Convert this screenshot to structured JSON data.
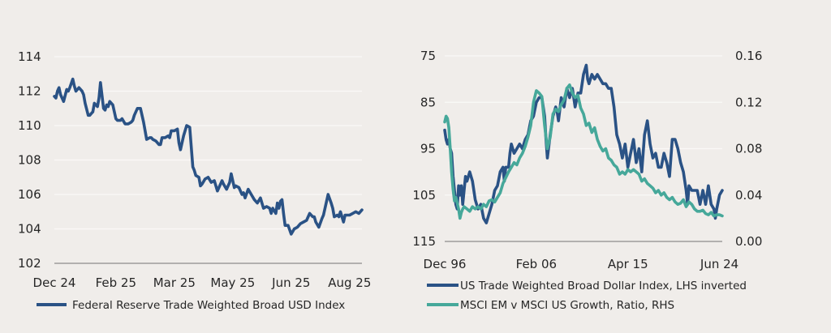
{
  "colors": {
    "background": "#f0edea",
    "navy": "#2a5285",
    "teal": "#46a89a",
    "axis": "#8c8c8c"
  },
  "chart_data": [
    {
      "type": "line",
      "title": "",
      "xlabel": "",
      "ylabel": "",
      "ylim": [
        102,
        114
      ],
      "yticks": [
        "114",
        "112",
        "110",
        "108",
        "106",
        "104",
        "102"
      ],
      "ytick_values": [
        114,
        112,
        110,
        108,
        106,
        104,
        102
      ],
      "xticks": [
        "Dec 24",
        "Feb 25",
        "Mar 25",
        "May 25",
        "Jun 25",
        "Aug 25"
      ],
      "xtick_positions": [
        0,
        0.2,
        0.39,
        0.58,
        0.77,
        0.96
      ],
      "grid": true,
      "legend": "bottom",
      "series": [
        {
          "name": "Federal Reserve Trade Weighted Broad USD Index",
          "color": "#2a5285",
          "x": [
            0,
            0.005,
            0.01,
            0.015,
            0.02,
            0.03,
            0.04,
            0.045,
            0.05,
            0.06,
            0.065,
            0.07,
            0.08,
            0.09,
            0.095,
            0.1,
            0.11,
            0.115,
            0.12,
            0.125,
            0.13,
            0.14,
            0.145,
            0.15,
            0.16,
            0.165,
            0.17,
            0.175,
            0.18,
            0.19,
            0.2,
            0.205,
            0.21,
            0.215,
            0.22,
            0.23,
            0.24,
            0.25,
            0.255,
            0.26,
            0.27,
            0.28,
            0.29,
            0.3,
            0.31,
            0.315,
            0.32,
            0.33,
            0.34,
            0.345,
            0.35,
            0.36,
            0.37,
            0.375,
            0.38,
            0.39,
            0.4,
            0.405,
            0.41,
            0.42,
            0.43,
            0.44,
            0.45,
            0.455,
            0.46,
            0.47,
            0.475,
            0.48,
            0.49,
            0.5,
            0.51,
            0.52,
            0.53,
            0.54,
            0.545,
            0.55,
            0.56,
            0.57,
            0.575,
            0.58,
            0.585,
            0.59,
            0.6,
            0.61,
            0.615,
            0.62,
            0.63,
            0.64,
            0.65,
            0.66,
            0.67,
            0.68,
            0.69,
            0.7,
            0.705,
            0.71,
            0.72,
            0.725,
            0.73,
            0.735,
            0.74,
            0.745,
            0.75,
            0.76,
            0.77,
            0.78,
            0.79,
            0.8,
            0.81,
            0.82,
            0.83,
            0.84,
            0.845,
            0.85,
            0.86,
            0.87,
            0.875,
            0.88,
            0.89,
            0.9,
            0.905,
            0.91,
            0.92,
            0.925,
            0.93,
            0.94,
            0.945,
            0.95,
            0.96,
            0.97,
            0.98,
            0.99,
            1.0
          ],
          "values": [
            111.7,
            111.6,
            112.0,
            112.2,
            111.8,
            111.4,
            112.1,
            112.0,
            112.2,
            112.7,
            112.3,
            112.0,
            112.2,
            112.0,
            111.8,
            111.3,
            110.6,
            110.6,
            110.7,
            110.8,
            111.3,
            111.1,
            111.6,
            112.5,
            111.0,
            110.9,
            111.2,
            111.1,
            111.4,
            111.2,
            110.4,
            110.3,
            110.3,
            110.3,
            110.4,
            110.1,
            110.1,
            110.2,
            110.3,
            110.6,
            111.0,
            111.0,
            110.2,
            109.2,
            109.3,
            109.3,
            109.2,
            109.1,
            108.9,
            108.9,
            109.3,
            109.3,
            109.4,
            109.3,
            109.7,
            109.7,
            109.8,
            109.0,
            108.6,
            109.4,
            110.0,
            109.9,
            107.6,
            107.4,
            107.1,
            107.0,
            106.5,
            106.6,
            106.9,
            107.0,
            106.7,
            106.8,
            106.2,
            106.6,
            106.8,
            106.6,
            106.3,
            106.7,
            107.2,
            106.8,
            106.4,
            106.5,
            106.4,
            106.0,
            106.1,
            105.8,
            106.3,
            106.0,
            105.7,
            105.5,
            105.8,
            105.2,
            105.3,
            105.2,
            104.9,
            105.2,
            104.9,
            105.5,
            105.2,
            105.6,
            105.7,
            104.9,
            104.2,
            104.2,
            103.7,
            104.0,
            104.1,
            104.3,
            104.4,
            104.5,
            104.9,
            104.7,
            104.7,
            104.4,
            104.1,
            104.6,
            104.8,
            105.2,
            106.0,
            105.5,
            105.2,
            104.7,
            104.8,
            104.7,
            105.0,
            104.4,
            104.8,
            104.8,
            104.8,
            104.9,
            105.0,
            104.9,
            105.1
          ]
        }
      ]
    },
    {
      "type": "line",
      "title": "",
      "xlabel": "",
      "ylabel": "",
      "ylim_left": [
        115,
        75
      ],
      "ylim_left_inverted": true,
      "ylim_right": [
        0.0,
        0.16
      ],
      "yticks_left": [
        "75",
        "85",
        "95",
        "105",
        "115"
      ],
      "ytick_left_values": [
        75,
        85,
        95,
        105,
        115
      ],
      "yticks_right": [
        "0.16",
        "0.12",
        "0.08",
        "0.04",
        "0.00"
      ],
      "ytick_right_values": [
        0.16,
        0.12,
        0.08,
        0.04,
        0.0
      ],
      "xticks": [
        "Dec 96",
        "Feb 06",
        "Apr 15",
        "Jun 24"
      ],
      "xtick_positions": [
        0,
        0.33,
        0.66,
        0.99
      ],
      "grid": true,
      "legend": "bottom",
      "series": [
        {
          "name": "US Trade Weighted Broad Dollar Index, LHS inverted",
          "color": "#2a5285",
          "axis": "left",
          "x": [
            0,
            0.005,
            0.01,
            0.015,
            0.02,
            0.025,
            0.03,
            0.035,
            0.04,
            0.045,
            0.05,
            0.055,
            0.06,
            0.065,
            0.07,
            0.075,
            0.08,
            0.09,
            0.1,
            0.11,
            0.12,
            0.13,
            0.14,
            0.15,
            0.16,
            0.17,
            0.18,
            0.19,
            0.2,
            0.21,
            0.215,
            0.22,
            0.23,
            0.235,
            0.24,
            0.25,
            0.26,
            0.27,
            0.28,
            0.29,
            0.3,
            0.31,
            0.32,
            0.33,
            0.34,
            0.35,
            0.36,
            0.365,
            0.37,
            0.38,
            0.39,
            0.4,
            0.405,
            0.41,
            0.42,
            0.43,
            0.44,
            0.45,
            0.46,
            0.47,
            0.48,
            0.49,
            0.5,
            0.51,
            0.515,
            0.52,
            0.53,
            0.54,
            0.55,
            0.56,
            0.57,
            0.58,
            0.59,
            0.6,
            0.61,
            0.62,
            0.63,
            0.64,
            0.65,
            0.66,
            0.67,
            0.68,
            0.69,
            0.7,
            0.71,
            0.72,
            0.73,
            0.74,
            0.75,
            0.76,
            0.77,
            0.78,
            0.79,
            0.8,
            0.81,
            0.82,
            0.83,
            0.84,
            0.85,
            0.86,
            0.87,
            0.875,
            0.88,
            0.89,
            0.9,
            0.91,
            0.92,
            0.93,
            0.94,
            0.95,
            0.96,
            0.97,
            0.975,
            0.98,
            0.99,
            1.0
          ],
          "values": [
            91,
            93,
            94,
            93,
            95,
            96,
            101,
            104,
            107,
            108,
            103,
            105,
            103,
            107,
            104,
            101,
            102,
            100,
            102,
            106,
            108,
            107,
            110,
            111,
            109,
            107,
            104,
            103,
            100,
            99,
            102,
            99,
            99,
            96,
            94,
            96,
            95,
            94,
            95,
            93,
            92,
            89,
            88,
            85,
            84,
            84,
            88,
            93,
            97,
            92,
            88,
            86,
            87,
            89,
            84,
            86,
            82,
            84,
            82,
            86,
            83,
            83,
            79,
            77,
            80,
            81,
            79,
            80,
            79,
            80,
            81,
            81,
            82,
            82,
            86,
            92,
            94,
            97,
            94,
            99,
            96,
            93,
            98,
            95,
            100,
            92,
            89,
            94,
            97,
            96,
            99,
            99,
            96,
            98,
            101,
            93,
            93,
            95,
            98,
            100,
            104,
            107,
            103,
            104,
            104,
            104,
            107,
            104,
            107,
            103,
            107,
            108,
            110,
            108,
            105,
            104
          ]
        },
        {
          "name": "MSCI EM v MSCI US Growth, Ratio, RHS",
          "color": "#46a89a",
          "axis": "right",
          "x": [
            0,
            0.005,
            0.01,
            0.015,
            0.02,
            0.025,
            0.03,
            0.035,
            0.04,
            0.05,
            0.055,
            0.06,
            0.065,
            0.07,
            0.08,
            0.09,
            0.1,
            0.11,
            0.12,
            0.13,
            0.14,
            0.15,
            0.16,
            0.17,
            0.18,
            0.19,
            0.2,
            0.21,
            0.22,
            0.23,
            0.24,
            0.25,
            0.26,
            0.27,
            0.28,
            0.29,
            0.3,
            0.31,
            0.32,
            0.33,
            0.34,
            0.35,
            0.36,
            0.37,
            0.38,
            0.39,
            0.4,
            0.41,
            0.42,
            0.43,
            0.44,
            0.45,
            0.46,
            0.47,
            0.48,
            0.49,
            0.5,
            0.51,
            0.52,
            0.53,
            0.54,
            0.55,
            0.56,
            0.57,
            0.58,
            0.59,
            0.6,
            0.61,
            0.62,
            0.63,
            0.64,
            0.65,
            0.66,
            0.67,
            0.68,
            0.69,
            0.7,
            0.71,
            0.72,
            0.73,
            0.74,
            0.75,
            0.76,
            0.77,
            0.78,
            0.79,
            0.8,
            0.81,
            0.82,
            0.83,
            0.84,
            0.85,
            0.86,
            0.87,
            0.88,
            0.89,
            0.9,
            0.91,
            0.92,
            0.93,
            0.94,
            0.95,
            0.96,
            0.97,
            0.98,
            0.99,
            1.0
          ],
          "values": [
            0.103,
            0.108,
            0.106,
            0.098,
            0.08,
            0.06,
            0.045,
            0.035,
            0.038,
            0.028,
            0.02,
            0.025,
            0.028,
            0.03,
            0.028,
            0.026,
            0.03,
            0.028,
            0.03,
            0.028,
            0.032,
            0.03,
            0.035,
            0.036,
            0.034,
            0.038,
            0.042,
            0.05,
            0.055,
            0.06,
            0.064,
            0.068,
            0.066,
            0.072,
            0.076,
            0.082,
            0.09,
            0.1,
            0.12,
            0.13,
            0.128,
            0.125,
            0.1,
            0.08,
            0.09,
            0.11,
            0.114,
            0.112,
            0.118,
            0.122,
            0.132,
            0.135,
            0.128,
            0.124,
            0.126,
            0.115,
            0.11,
            0.1,
            0.102,
            0.094,
            0.098,
            0.088,
            0.082,
            0.078,
            0.08,
            0.072,
            0.07,
            0.066,
            0.064,
            0.058,
            0.06,
            0.058,
            0.062,
            0.06,
            0.062,
            0.06,
            0.058,
            0.052,
            0.054,
            0.05,
            0.048,
            0.046,
            0.042,
            0.044,
            0.04,
            0.042,
            0.038,
            0.036,
            0.038,
            0.034,
            0.032,
            0.033,
            0.036,
            0.03,
            0.034,
            0.032,
            0.028,
            0.026,
            0.026,
            0.027,
            0.024,
            0.023,
            0.025,
            0.022,
            0.023,
            0.023,
            0.022
          ]
        }
      ]
    }
  ]
}
